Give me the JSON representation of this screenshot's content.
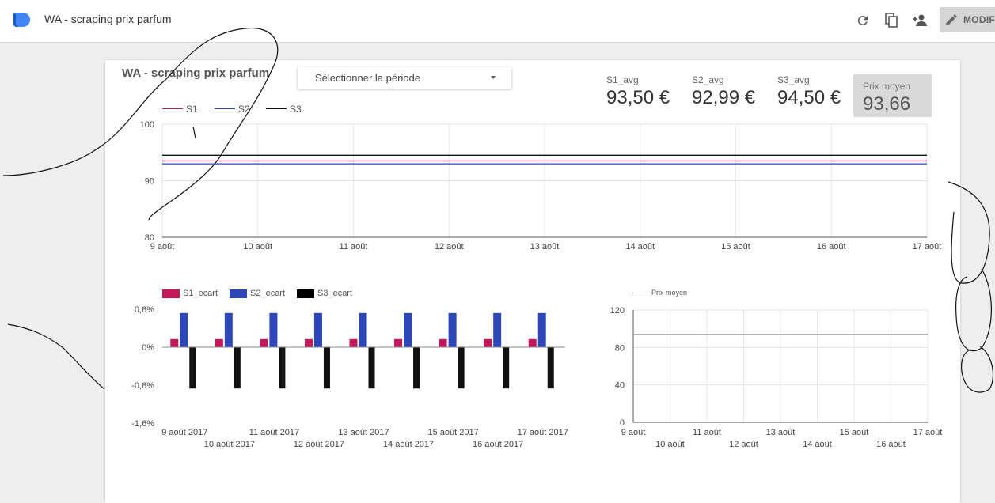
{
  "app": {
    "title": "WA - scraping prix parfum",
    "edit_label": "MODIFIER",
    "icons": [
      "refresh-icon",
      "copy-icon",
      "add-person-icon",
      "pencil-icon"
    ]
  },
  "report": {
    "title": "WA - scraping prix parfum",
    "date_picker": {
      "label": "Sélectionner la période"
    },
    "kpis": [
      {
        "label": "S1_avg",
        "value": "93,50 €"
      },
      {
        "label": "S2_avg",
        "value": "92,99 €"
      },
      {
        "label": "S3_avg",
        "value": "94,50 €"
      },
      {
        "label": "Prix moyen",
        "value": "93,66"
      }
    ]
  },
  "colors": {
    "s1": "#c2185b",
    "s2": "#2d47b8",
    "s3": "#111111",
    "prix": "#666666"
  },
  "chart_data": [
    {
      "type": "line",
      "x": [
        "9 août",
        "10 août",
        "11 août",
        "12 août",
        "13 août",
        "14 août",
        "15 août",
        "16 août",
        "17 août"
      ],
      "series": [
        {
          "name": "S1",
          "values": [
            93.5,
            93.5,
            93.5,
            93.5,
            93.5,
            93.5,
            93.5,
            93.5,
            93.5
          ]
        },
        {
          "name": "S2",
          "values": [
            92.99,
            92.99,
            92.99,
            92.99,
            92.99,
            92.99,
            92.99,
            92.99,
            92.99
          ]
        },
        {
          "name": "S3",
          "values": [
            94.5,
            94.5,
            94.5,
            94.5,
            94.5,
            94.5,
            94.5,
            94.5,
            94.5
          ]
        }
      ],
      "ylim": [
        80,
        100
      ],
      "yticks": [
        "80",
        "90",
        "100"
      ],
      "legend": "top-left",
      "grid": true
    },
    {
      "type": "bar",
      "categories": [
        "9 août 2017",
        "10 août 2017",
        "11 août 2017",
        "12 août 2017",
        "13 août 2017",
        "14 août 2017",
        "15 août 2017",
        "16 août 2017",
        "17 août 2017"
      ],
      "series": [
        {
          "name": "S1_ecart",
          "values": [
            0.17,
            0.17,
            0.17,
            0.17,
            0.17,
            0.17,
            0.17,
            0.17,
            0.17
          ]
        },
        {
          "name": "S2_ecart",
          "values": [
            0.72,
            0.72,
            0.72,
            0.72,
            0.72,
            0.72,
            0.72,
            0.72,
            0.72
          ]
        },
        {
          "name": "S3_ecart",
          "values": [
            -0.87,
            -0.87,
            -0.87,
            -0.87,
            -0.87,
            -0.87,
            -0.87,
            -0.87,
            -0.87
          ]
        }
      ],
      "ylim": [
        -1.6,
        0.8
      ],
      "yticks": [
        "0,8%",
        "0%",
        "-0,8%",
        "-1,6%"
      ],
      "legend": "top-left"
    },
    {
      "type": "line",
      "x": [
        "9 août",
        "10 août",
        "11 août",
        "12 août",
        "13 août",
        "14 août",
        "15 août",
        "16 août",
        "17 août"
      ],
      "series": [
        {
          "name": "Prix moyen",
          "values": [
            93.66,
            93.66,
            93.66,
            93.66,
            93.66,
            93.66,
            93.66,
            93.66,
            93.66
          ]
        }
      ],
      "ylim": [
        0,
        120
      ],
      "yticks": [
        "0",
        "40",
        "80",
        "120"
      ],
      "legend": "top-left",
      "grid": true
    }
  ]
}
